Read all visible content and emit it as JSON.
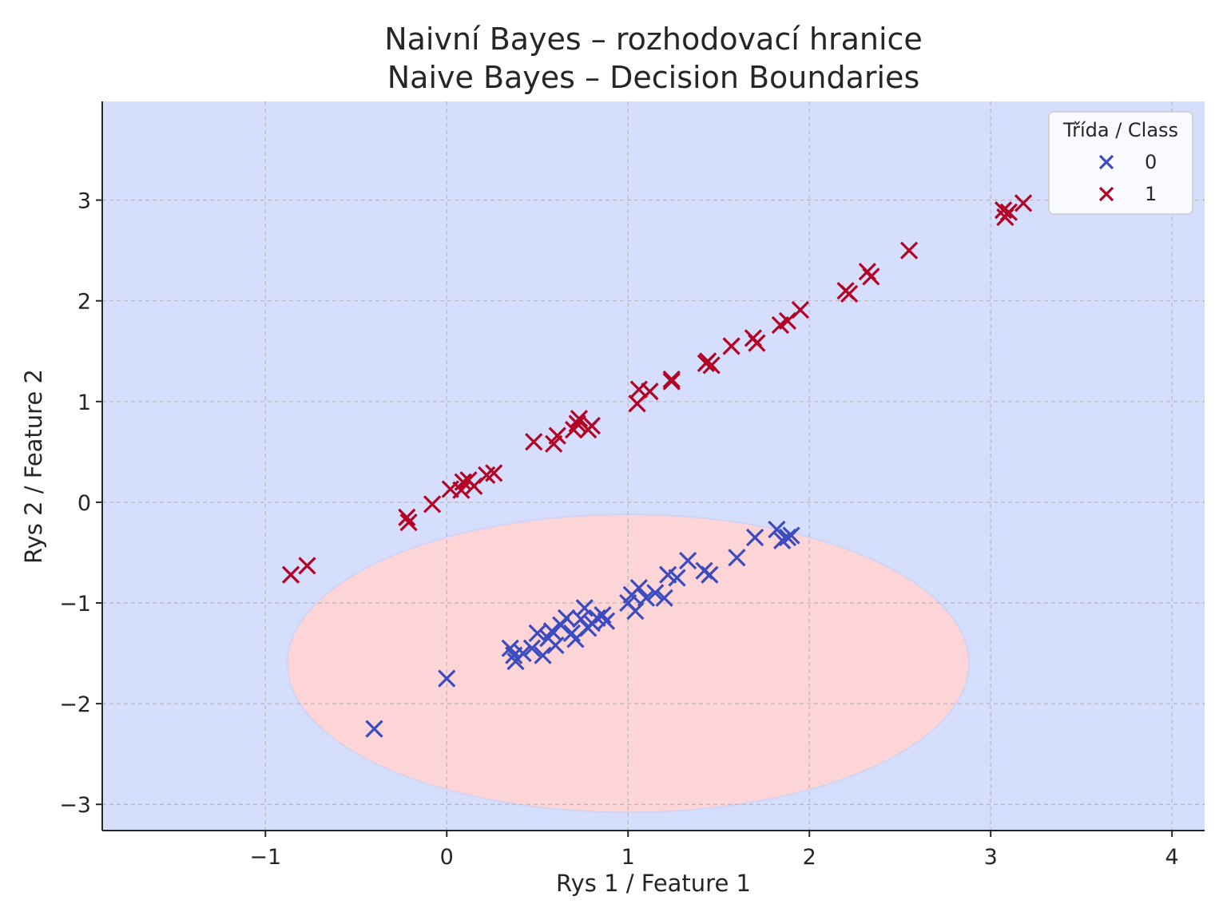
{
  "chart_data": {
    "type": "scatter",
    "title": "Naivní Bayes – rozhodovací hranice",
    "subtitle": "Naive Bayes – Decision Boundaries",
    "xlabel": "Rys 1 / Feature 1",
    "ylabel": "Rys 2 / Feature 2",
    "xlim": [
      -1.9,
      4.18
    ],
    "ylim": [
      -3.26,
      3.98
    ],
    "xticks": [
      -1,
      0,
      1,
      2,
      3,
      4
    ],
    "xtick_labels": [
      "−1",
      "0",
      "1",
      "2",
      "3",
      "4"
    ],
    "yticks": [
      -3,
      -2,
      -1,
      0,
      1,
      2,
      3
    ],
    "ytick_labels": [
      "−3",
      "−2",
      "−1",
      "0",
      "1",
      "2",
      "3"
    ],
    "grid": true,
    "legend": {
      "title": "Třída / Class",
      "position": "top-right"
    },
    "decision_regions": {
      "background_class": "1",
      "background_color": "#d5dffd",
      "inner_class": "0",
      "inner_color": "#fdd5d6",
      "inner_boundary": "ellipse",
      "inner_center": [
        1.0,
        -1.6
      ],
      "inner_radius_x": 1.88,
      "inner_radius_y": 1.48
    },
    "series": [
      {
        "name": "0",
        "color": "#3b4cc0",
        "marker": "x",
        "points": [
          [
            -0.4,
            -2.25
          ],
          [
            0.0,
            -1.75
          ],
          [
            0.35,
            -1.45
          ],
          [
            0.37,
            -1.52
          ],
          [
            0.38,
            -1.58
          ],
          [
            0.42,
            -1.5
          ],
          [
            0.47,
            -1.45
          ],
          [
            0.5,
            -1.3
          ],
          [
            0.53,
            -1.52
          ],
          [
            0.56,
            -1.35
          ],
          [
            0.58,
            -1.28
          ],
          [
            0.6,
            -1.42
          ],
          [
            0.63,
            -1.22
          ],
          [
            0.66,
            -1.15
          ],
          [
            0.69,
            -1.3
          ],
          [
            0.71,
            -1.36
          ],
          [
            0.74,
            -1.16
          ],
          [
            0.76,
            -1.05
          ],
          [
            0.78,
            -1.25
          ],
          [
            0.8,
            -1.2
          ],
          [
            0.83,
            -1.15
          ],
          [
            0.86,
            -1.12
          ],
          [
            0.88,
            -1.18
          ],
          [
            1.0,
            -1.0
          ],
          [
            1.02,
            -0.92
          ],
          [
            1.04,
            -1.08
          ],
          [
            1.06,
            -0.85
          ],
          [
            1.1,
            -0.95
          ],
          [
            1.15,
            -0.9
          ],
          [
            1.2,
            -0.95
          ],
          [
            1.22,
            -0.72
          ],
          [
            1.27,
            -0.75
          ],
          [
            1.33,
            -0.58
          ],
          [
            1.42,
            -0.68
          ],
          [
            1.45,
            -0.72
          ],
          [
            1.6,
            -0.55
          ],
          [
            1.7,
            -0.35
          ],
          [
            1.82,
            -0.27
          ],
          [
            1.85,
            -0.38
          ],
          [
            1.88,
            -0.35
          ],
          [
            1.9,
            -0.33
          ]
        ]
      },
      {
        "name": "1",
        "color": "#b40426",
        "marker": "x",
        "points": [
          [
            -0.86,
            -0.72
          ],
          [
            -0.77,
            -0.63
          ],
          [
            -0.22,
            -0.15
          ],
          [
            -0.21,
            -0.2
          ],
          [
            -0.08,
            -0.02
          ],
          [
            0.02,
            0.13
          ],
          [
            0.08,
            0.12
          ],
          [
            0.09,
            0.2
          ],
          [
            0.12,
            0.22
          ],
          [
            0.15,
            0.16
          ],
          [
            0.22,
            0.27
          ],
          [
            0.26,
            0.29
          ],
          [
            0.48,
            0.6
          ],
          [
            0.59,
            0.58
          ],
          [
            0.61,
            0.66
          ],
          [
            0.7,
            0.72
          ],
          [
            0.72,
            0.78
          ],
          [
            0.73,
            0.83
          ],
          [
            0.78,
            0.72
          ],
          [
            0.8,
            0.76
          ],
          [
            1.05,
            0.98
          ],
          [
            1.06,
            1.12
          ],
          [
            1.12,
            1.1
          ],
          [
            1.24,
            1.22
          ],
          [
            1.24,
            1.2
          ],
          [
            1.43,
            1.38
          ],
          [
            1.44,
            1.4
          ],
          [
            1.46,
            1.36
          ],
          [
            1.57,
            1.55
          ],
          [
            1.69,
            1.63
          ],
          [
            1.71,
            1.58
          ],
          [
            1.84,
            1.76
          ],
          [
            1.88,
            1.8
          ],
          [
            1.95,
            1.91
          ],
          [
            2.2,
            2.1
          ],
          [
            2.22,
            2.07
          ],
          [
            2.32,
            2.29
          ],
          [
            2.34,
            2.24
          ],
          [
            2.55,
            2.5
          ],
          [
            3.07,
            2.9
          ],
          [
            3.08,
            2.83
          ],
          [
            3.1,
            2.88
          ],
          [
            3.18,
            2.97
          ]
        ]
      }
    ]
  }
}
